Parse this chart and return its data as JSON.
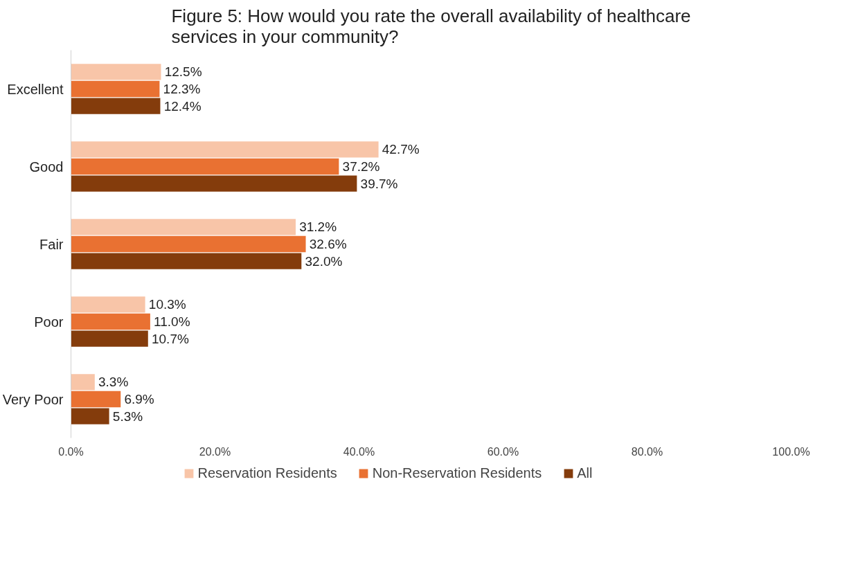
{
  "chart_data": {
    "type": "bar",
    "orientation": "horizontal",
    "title": "Figure 5: How would you rate the overall availability of healthcare\nservices in your community?",
    "categories": [
      "Excellent",
      "Good",
      "Fair",
      "Poor",
      "Very Poor"
    ],
    "series": [
      {
        "name": "Reservation Residents",
        "color": "#f8c5a8",
        "values": [
          12.5,
          42.7,
          31.2,
          10.3,
          3.3
        ],
        "value_labels": [
          "12.5%",
          "42.7%",
          "31.2%",
          "10.3%",
          "3.3%"
        ]
      },
      {
        "name": "Non-Reservation Residents",
        "color": "#e97132",
        "values": [
          12.3,
          37.2,
          32.6,
          11.0,
          6.9
        ],
        "value_labels": [
          "12.3%",
          "37.2%",
          "32.6%",
          "11.0%",
          "6.9%"
        ]
      },
      {
        "name": "All",
        "color": "#843c0c",
        "values": [
          12.4,
          39.7,
          32.0,
          10.7,
          5.3
        ],
        "value_labels": [
          "12.4%",
          "39.7%",
          "32.0%",
          "10.7%",
          "5.3%"
        ]
      }
    ],
    "xlim": [
      0,
      100
    ],
    "xticks": [
      {
        "value": 0,
        "label": "0.0%"
      },
      {
        "value": 20,
        "label": "20.0%"
      },
      {
        "value": 40,
        "label": "40.0%"
      },
      {
        "value": 60,
        "label": "60.0%"
      },
      {
        "value": 80,
        "label": "80.0%"
      },
      {
        "value": 100,
        "label": "100.0%"
      }
    ],
    "grid": false,
    "legend": "bottom"
  }
}
